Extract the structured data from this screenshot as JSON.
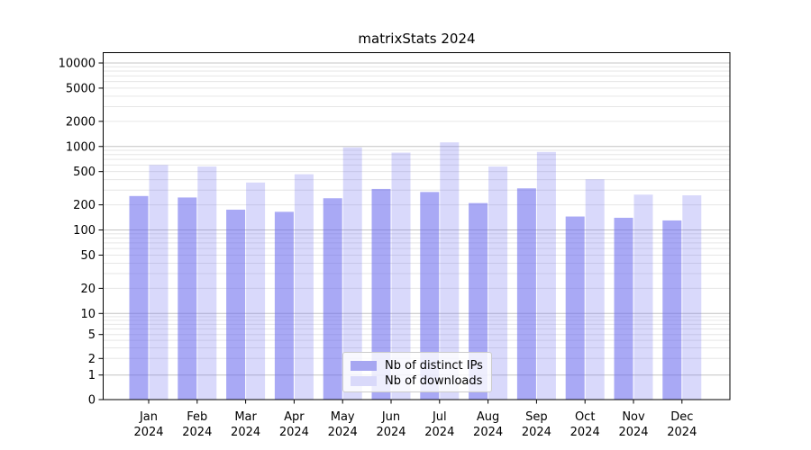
{
  "chart_data": {
    "type": "bar",
    "title": "matrixStats 2024",
    "months": [
      "Jan",
      "Feb",
      "Mar",
      "Apr",
      "May",
      "Jun",
      "Jul",
      "Aug",
      "Sep",
      "Oct",
      "Nov",
      "Dec"
    ],
    "year_label": "2024",
    "series": [
      {
        "name": "Nb of distinct IPs",
        "color_solid": "#a6a6f1",
        "fill": "rgba(102,102,238,0.56)",
        "values": [
          255,
          245,
          175,
          165,
          240,
          310,
          285,
          210,
          315,
          145,
          140,
          130
        ]
      },
      {
        "name": "Nb of downloads",
        "color_solid": "#d9d9fa",
        "fill": "rgba(102,102,238,0.25)",
        "values": [
          600,
          575,
          370,
          465,
          975,
          845,
          1120,
          575,
          860,
          405,
          265,
          260
        ]
      }
    ],
    "yticks": [
      0,
      1,
      2,
      5,
      10,
      20,
      50,
      100,
      200,
      500,
      1000,
      2000,
      5000,
      10000
    ],
    "scale": "symlog",
    "ylim": [
      0,
      13000
    ],
    "grid": true,
    "legend_position": "lower center",
    "colors": {
      "grid_major": "#c4c4c4",
      "grid_minor": "#e6e6e6",
      "spine": "#000000",
      "text": "#000000"
    }
  }
}
